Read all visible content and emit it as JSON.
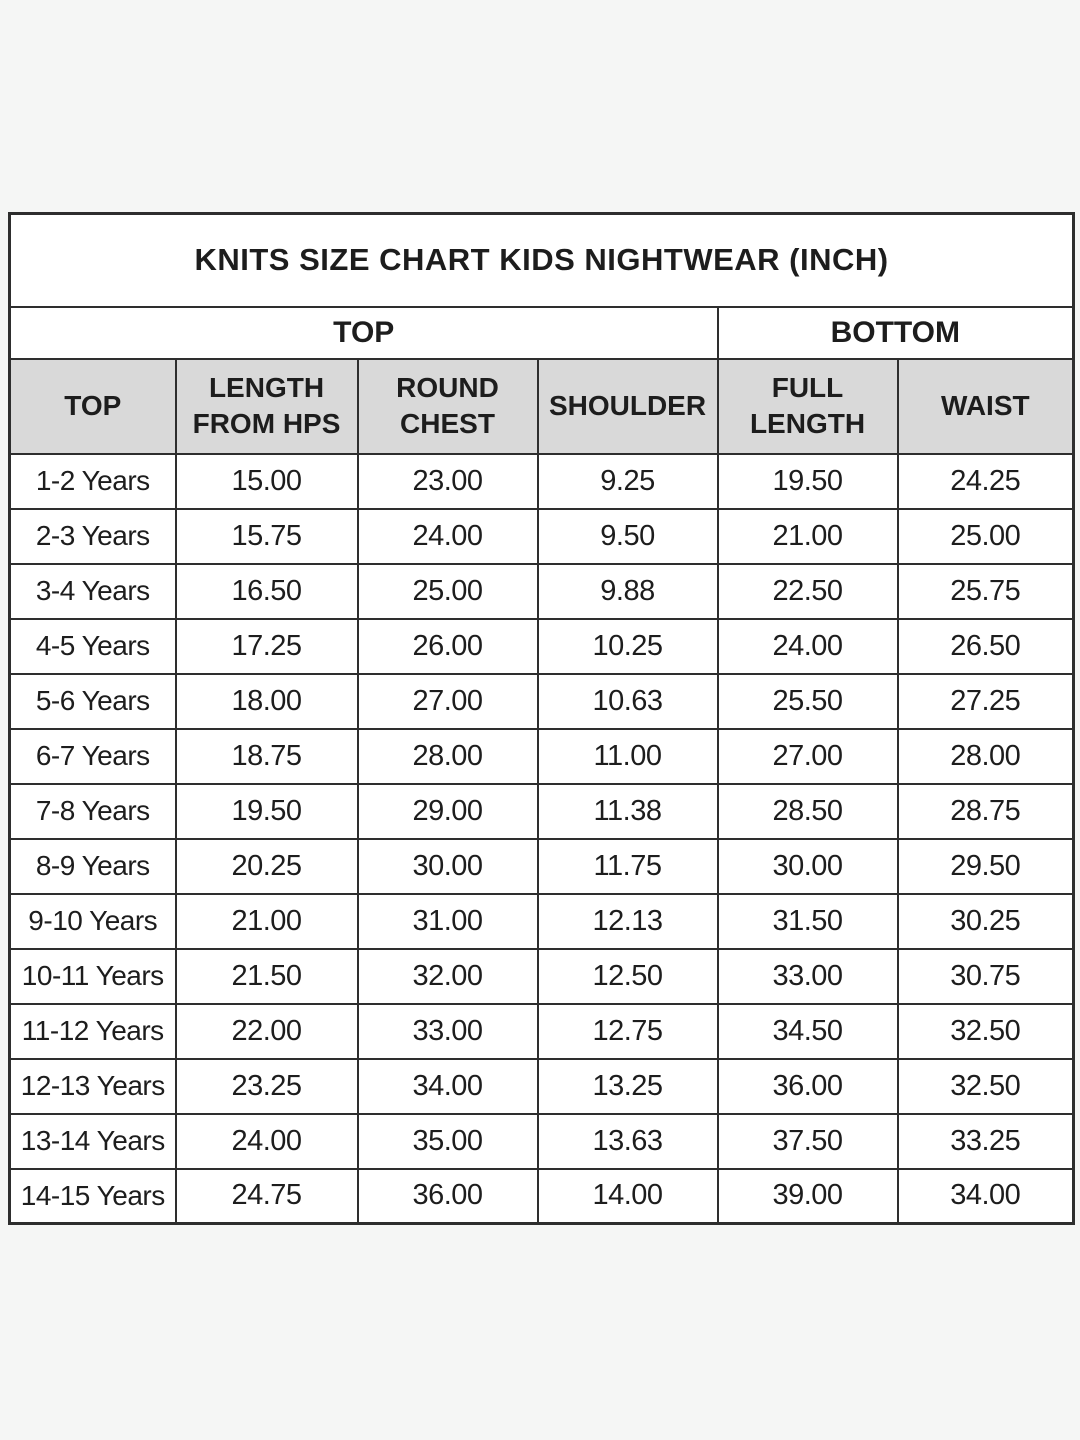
{
  "colors": {
    "page_background": "#f5f6f5",
    "table_background": "#ffffff",
    "header_cell_background": "#d9d9d9",
    "border": "#2e2e2e",
    "text": "#1d1d1d"
  },
  "chart_data": {
    "type": "table",
    "title": "KNITS SIZE CHART KIDS NIGHTWEAR (INCH)",
    "group_headers": [
      {
        "label": "TOP",
        "colspan": 4
      },
      {
        "label": "BOTTOM",
        "colspan": 2
      }
    ],
    "columns": [
      "TOP",
      "LENGTH FROM HPS",
      "ROUND CHEST",
      "SHOULDER",
      "FULL LENGTH",
      "WAIST"
    ],
    "rows": [
      {
        "size": "1-2 Years",
        "values": [
          "15.00",
          "23.00",
          "9.25",
          "19.50",
          "24.25"
        ]
      },
      {
        "size": "2-3 Years",
        "values": [
          "15.75",
          "24.00",
          "9.50",
          "21.00",
          "25.00"
        ]
      },
      {
        "size": "3-4 Years",
        "values": [
          "16.50",
          "25.00",
          "9.88",
          "22.50",
          "25.75"
        ]
      },
      {
        "size": "4-5 Years",
        "values": [
          "17.25",
          "26.00",
          "10.25",
          "24.00",
          "26.50"
        ]
      },
      {
        "size": "5-6 Years",
        "values": [
          "18.00",
          "27.00",
          "10.63",
          "25.50",
          "27.25"
        ]
      },
      {
        "size": "6-7 Years",
        "values": [
          "18.75",
          "28.00",
          "11.00",
          "27.00",
          "28.00"
        ]
      },
      {
        "size": "7-8 Years",
        "values": [
          "19.50",
          "29.00",
          "11.38",
          "28.50",
          "28.75"
        ]
      },
      {
        "size": "8-9 Years",
        "values": [
          "20.25",
          "30.00",
          "11.75",
          "30.00",
          "29.50"
        ]
      },
      {
        "size": "9-10 Years",
        "values": [
          "21.00",
          "31.00",
          "12.13",
          "31.50",
          "30.25"
        ]
      },
      {
        "size": "10-11 Years",
        "values": [
          "21.50",
          "32.00",
          "12.50",
          "33.00",
          "30.75"
        ]
      },
      {
        "size": "11-12 Years",
        "values": [
          "22.00",
          "33.00",
          "12.75",
          "34.50",
          "32.50"
        ]
      },
      {
        "size": "12-13 Years",
        "values": [
          "23.25",
          "34.00",
          "13.25",
          "36.00",
          "32.50"
        ]
      },
      {
        "size": "13-14 Years",
        "values": [
          "24.00",
          "35.00",
          "13.63",
          "37.50",
          "33.25"
        ]
      },
      {
        "size": "14-15 Years",
        "values": [
          "24.75",
          "36.00",
          "14.00",
          "39.00",
          "34.00"
        ]
      }
    ]
  }
}
